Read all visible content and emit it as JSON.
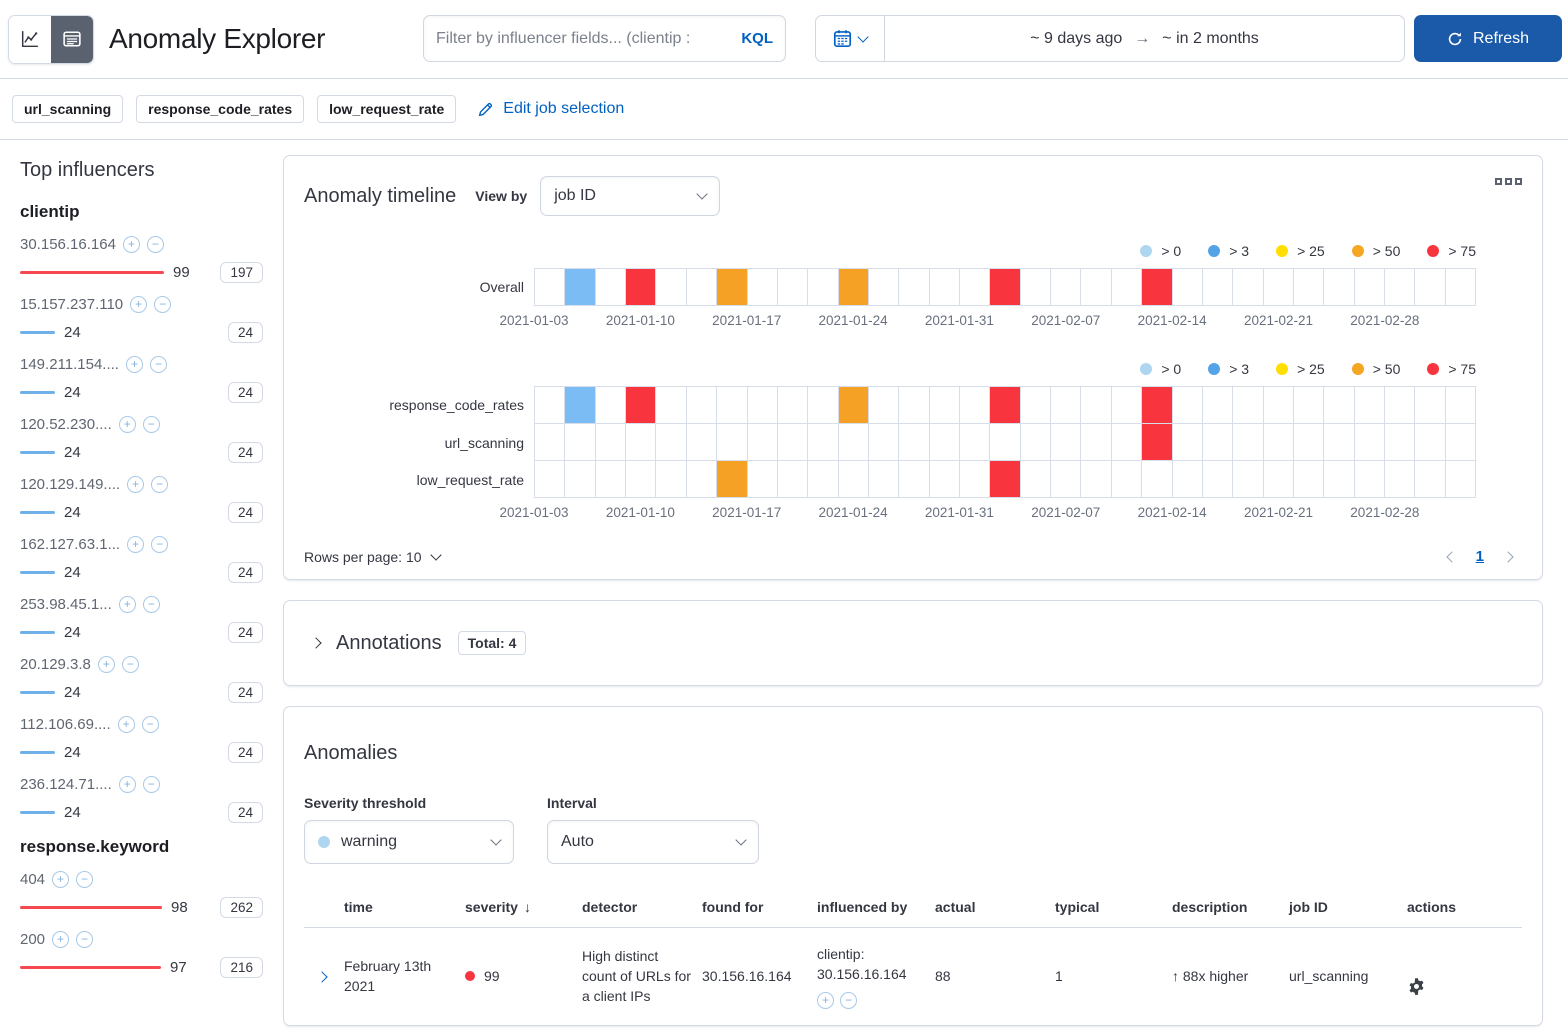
{
  "header": {
    "title": "Anomaly Explorer",
    "filter": {
      "placeholder": "Filter by influencer fields... (clientip :",
      "language": "KQL"
    },
    "datepicker": {
      "start": "~ 9 days ago",
      "end": "~ in 2 months"
    },
    "refresh_label": "Refresh"
  },
  "jobs_bar": {
    "badges": [
      "url_scanning",
      "response_code_rates",
      "low_request_rate"
    ],
    "edit_link": "Edit job selection"
  },
  "sidebar": {
    "title": "Top influencers",
    "groups": [
      {
        "field": "clientip",
        "items": [
          {
            "label": "30.156.16.164",
            "value": 99,
            "badge": "197",
            "severity": "critical"
          },
          {
            "label": "15.157.237.110",
            "value": 24,
            "badge": "24",
            "severity": "warning"
          },
          {
            "label": "149.211.154....",
            "value": 24,
            "badge": "24",
            "severity": "warning"
          },
          {
            "label": "120.52.230....",
            "value": 24,
            "badge": "24",
            "severity": "warning"
          },
          {
            "label": "120.129.149....",
            "value": 24,
            "badge": "24",
            "severity": "warning"
          },
          {
            "label": "162.127.63.1...",
            "value": 24,
            "badge": "24",
            "severity": "warning"
          },
          {
            "label": "253.98.45.1...",
            "value": 24,
            "badge": "24",
            "severity": "warning"
          },
          {
            "label": "20.129.3.8",
            "value": 24,
            "badge": "24",
            "severity": "warning"
          },
          {
            "label": "112.106.69....",
            "value": 24,
            "badge": "24",
            "severity": "warning"
          },
          {
            "label": "236.124.71....",
            "value": 24,
            "badge": "24",
            "severity": "warning"
          }
        ]
      },
      {
        "field": "response.keyword",
        "items": [
          {
            "label": "404",
            "value": 98,
            "badge": "262",
            "severity": "critical"
          },
          {
            "label": "200",
            "value": 97,
            "badge": "216",
            "severity": "critical"
          }
        ]
      }
    ]
  },
  "timeline": {
    "title": "Anomaly timeline",
    "view_by_label": "View by",
    "view_by_value": "job ID",
    "legend": [
      {
        "label": "> 0",
        "color": "#AED6F0"
      },
      {
        "label": "> 3",
        "color": "#54A3E6"
      },
      {
        "label": "> 25",
        "color": "#FFDE00"
      },
      {
        "label": "> 50",
        "color": "#F5A623"
      },
      {
        "label": "> 75",
        "color": "#F8353E"
      }
    ],
    "cells_per_lane": 31,
    "ticks_every_cells": 3.5,
    "axis": [
      "2021-01-03",
      "2021-01-10",
      "2021-01-17",
      "2021-01-24",
      "2021-01-31",
      "2021-02-07",
      "2021-02-14",
      "2021-02-21",
      "2021-02-28"
    ],
    "overall": {
      "label": "Overall",
      "cells": [
        {
          "i": 1,
          "c": "#7CBCF5"
        },
        {
          "i": 3,
          "c": "#F8353E"
        },
        {
          "i": 6,
          "c": "#F5A125"
        },
        {
          "i": 10,
          "c": "#F5A125"
        },
        {
          "i": 15,
          "c": "#F8353E"
        },
        {
          "i": 20,
          "c": "#F8353E"
        }
      ]
    },
    "jobs": [
      {
        "label": "response_code_rates",
        "cells": [
          {
            "i": 1,
            "c": "#7CBCF5"
          },
          {
            "i": 3,
            "c": "#F8353E"
          },
          {
            "i": 10,
            "c": "#F5A125"
          },
          {
            "i": 15,
            "c": "#F8353E"
          },
          {
            "i": 20,
            "c": "#F8353E"
          }
        ]
      },
      {
        "label": "url_scanning",
        "cells": [
          {
            "i": 20,
            "c": "#F8353E"
          }
        ]
      },
      {
        "label": "low_request_rate",
        "cells": [
          {
            "i": 6,
            "c": "#F5A125"
          },
          {
            "i": 15,
            "c": "#F8353E"
          }
        ]
      }
    ],
    "rows_per_page_label": "Rows per page: 10",
    "page": "1"
  },
  "annotations": {
    "title": "Annotations",
    "badge": "Total: 4"
  },
  "anomalies": {
    "title": "Anomalies",
    "severity_label": "Severity threshold",
    "severity_value": "warning",
    "interval_label": "Interval",
    "interval_value": "Auto",
    "columns": [
      "time",
      "severity",
      "detector",
      "found for",
      "influenced by",
      "actual",
      "typical",
      "description",
      "job ID",
      "actions"
    ],
    "rows": [
      {
        "time": "February 13th 2021",
        "severity": "99",
        "severity_color": "#F8353E",
        "detector": "High distinct count of URLs for a client IPs",
        "found_for": "30.156.16.164",
        "influenced_by_field": "clientip:",
        "influenced_by_value": "30.156.16.164",
        "actual": "88",
        "typical": "1",
        "description": "88x higher",
        "job_id": "url_scanning"
      }
    ]
  },
  "icons": {
    "sort_desc": "↓",
    "trend_up": "↑",
    "date_arrow": "→",
    "plus": "+",
    "minus": "−"
  },
  "colors": {
    "primary": "#0061c2",
    "primary_button": "#1b5aa8",
    "border": "#d3dae6",
    "text": "#343741",
    "subtle_text": "#69707d",
    "bar_critical": "#F6494F",
    "bar_warning": "#6FB0E9",
    "severity_warning_dot": "#AED6F0",
    "severity_critical_dot": "#F8353E"
  }
}
